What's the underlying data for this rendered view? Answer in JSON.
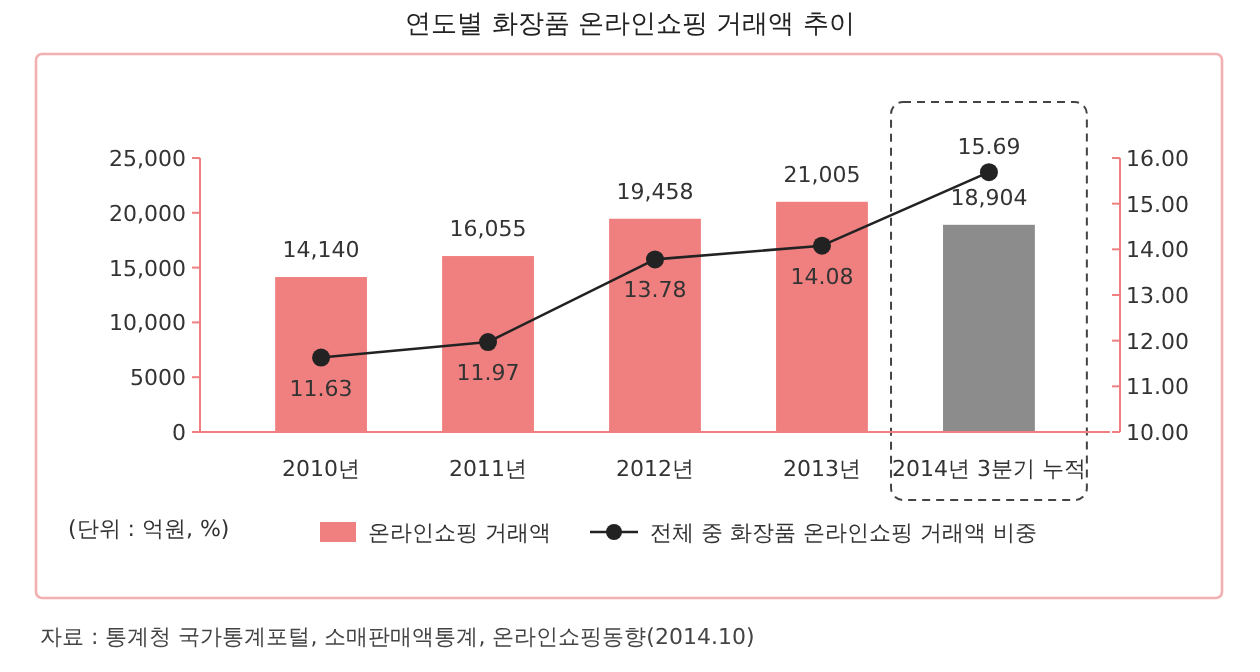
{
  "chart_data": {
    "type": "bar",
    "title": "연도별 화장품 온라인쇼핑 거래액 추이",
    "categories": [
      "2010년",
      "2011년",
      "2012년",
      "2013년",
      "2014년 3분기 누적"
    ],
    "series": [
      {
        "name": "온라인쇼핑 거래액",
        "color": "#f08080",
        "colors": [
          "#f08080",
          "#f08080",
          "#f08080",
          "#f08080",
          "#8c8c8c"
        ],
        "values": [
          14140,
          16055,
          19458,
          21005,
          18904
        ],
        "value_labels": [
          "14,140",
          "16,055",
          "19,458",
          "21,005",
          "18,904"
        ]
      },
      {
        "name": "전체 중 화장품 온라인쇼핑 거래액 비중",
        "type": "line",
        "axis": "y2",
        "color": "#222222",
        "marker": "circle",
        "values": [
          11.63,
          11.97,
          13.78,
          14.08,
          15.69
        ],
        "value_labels": [
          "11.63",
          "11.97",
          "13.78",
          "14.08",
          "15.69"
        ]
      }
    ],
    "ylim": [
      0,
      25000
    ],
    "yticks": [
      0,
      5000,
      {
        "value": 10000,
        "label": "10,000"
      },
      {
        "value": 15000,
        "label": "15,000"
      },
      {
        "value": 20000,
        "label": "20,000"
      },
      {
        "value": 25000,
        "label": "25,000"
      }
    ],
    "y2lim": [
      10,
      16
    ],
    "y2ticks": [
      {
        "value": 10,
        "label": "10.00"
      },
      {
        "value": 11,
        "label": "11.00"
      },
      {
        "value": 12,
        "label": "12.00"
      },
      {
        "value": 13,
        "label": "13.00"
      },
      {
        "value": 14,
        "label": "14.00"
      },
      {
        "value": 15,
        "label": "15.00"
      },
      {
        "value": 16,
        "label": "16.00"
      }
    ],
    "legend": "bottom",
    "grid": false,
    "annotations": [
      "(단위 : 억원, %)",
      "자료 : 통계청 국가통계포털, 소매판매액통계, 온라인쇼핑동향(2014.10)"
    ]
  }
}
